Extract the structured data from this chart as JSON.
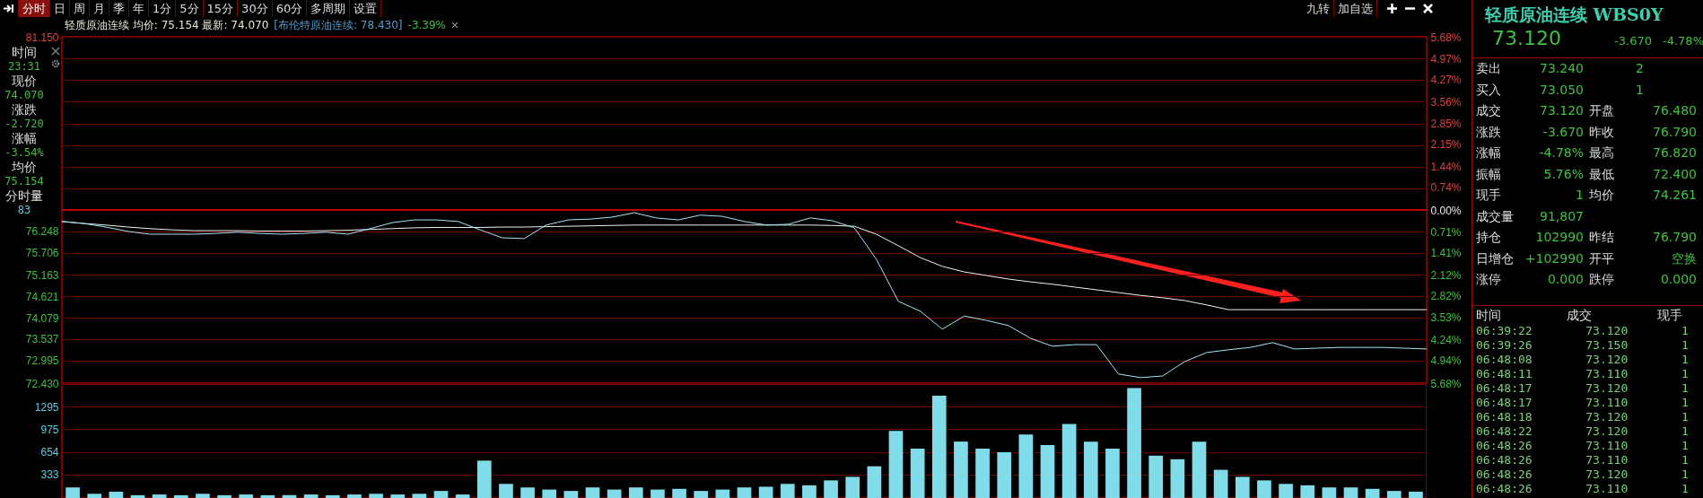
{
  "chart_data": [
    {
      "type": "other",
      "annotations": [
        "分时",
        "日",
        "周",
        "月",
        "季",
        "年",
        "1分",
        "5分",
        "15分",
        "30分",
        "60分",
        "多周期",
        "设置"
      ]
    },
    {
      "type": "other",
      "annotations": [
        "九转",
        "加自选"
      ]
    },
    {
      "type": "other",
      "annotations": [
        "时间",
        "23:31",
        "现价",
        "74.070",
        "涨跌",
        "-2.720",
        "涨幅",
        "-3.54%",
        "均价",
        "75.154",
        "分时量",
        "83"
      ]
    },
    {
      "type": "line",
      "annotations": [
        "轻质原油连续 均价: 75.154 最新: 74.070",
        "[布伦特原油连续: 78.430]",
        "-3.39%"
      ],
      "categories": [
        null,
        null,
        null,
        null,
        null,
        null,
        null,
        null,
        null,
        null,
        null,
        null,
        null,
        null,
        null,
        null,
        null,
        null,
        null,
        null,
        null,
        null,
        null,
        null,
        null,
        null,
        null,
        null,
        null,
        null,
        null,
        null,
        null,
        null,
        null,
        null,
        null,
        null,
        null,
        null,
        null,
        null,
        null,
        null,
        null,
        null,
        null,
        null,
        null,
        null,
        null,
        null,
        null,
        null,
        null,
        null,
        null,
        null,
        null,
        null,
        null,
        null,
        null
      ],
      "series": [
        {
          "color": "#f0f0f0",
          "values": [
            76.5,
            76.45,
            76.41,
            76.36,
            76.32,
            76.29,
            76.27,
            76.27,
            76.27,
            76.26,
            76.26,
            76.26,
            76.27,
            76.28,
            76.3,
            76.32,
            76.34,
            76.35,
            76.35,
            76.35,
            76.36,
            76.36,
            76.37,
            76.38,
            76.39,
            76.4,
            76.41,
            76.41,
            76.41,
            76.41,
            76.41,
            76.41,
            76.41,
            76.41,
            76.41,
            76.4,
            76.38,
            76.18,
            75.89,
            75.59,
            75.37,
            75.23,
            75.14,
            75.05,
            74.98,
            74.92,
            74.85,
            74.78,
            74.71,
            74.64,
            74.58,
            74.51,
            74.4,
            74.28,
            74.28,
            74.28,
            74.28,
            74.28,
            74.28,
            74.28,
            74.28,
            74.28,
            74.28
          ]
        },
        {
          "color": "#a8e4f8",
          "values": [
            76.5,
            76.45,
            76.36,
            76.25,
            76.18,
            76.18,
            76.18,
            76.2,
            76.23,
            76.2,
            76.18,
            76.2,
            76.23,
            76.18,
            76.32,
            76.47,
            76.54,
            76.54,
            76.5,
            76.29,
            76.09,
            76.07,
            76.41,
            76.54,
            76.56,
            76.61,
            76.72,
            76.59,
            76.54,
            76.66,
            76.63,
            76.5,
            76.41,
            76.43,
            76.59,
            76.52,
            76.34,
            75.55,
            74.49,
            74.24,
            73.79,
            74.12,
            74.01,
            73.88,
            73.56,
            73.36,
            73.4,
            73.4,
            72.66,
            72.57,
            72.61,
            72.97,
            73.2,
            73.27,
            73.33,
            73.45,
            73.29,
            73.31,
            73.33,
            73.33,
            73.33,
            73.31,
            73.29
          ]
        }
      ],
      "ylim": [
        72.43,
        81.15
      ],
      "yticks": [
        {
          "value": 81.15,
          "label": "81.150"
        },
        {
          "value": 80.605,
          "label": null
        },
        {
          "value": 80.06,
          "label": null
        },
        {
          "value": 79.515,
          "label": null
        },
        {
          "value": 78.97,
          "label": null
        },
        {
          "value": 78.425,
          "label": null
        },
        {
          "value": 77.88,
          "label": null
        },
        {
          "value": 77.335,
          "label": null
        },
        {
          "value": 76.79,
          "label": null
        },
        {
          "value": 76.248,
          "label": "76.248"
        },
        {
          "value": 75.706,
          "label": "75.706"
        },
        {
          "value": 75.163,
          "label": "75.163"
        },
        {
          "value": 74.621,
          "label": "74.621"
        },
        {
          "value": 74.079,
          "label": "74.079"
        },
        {
          "value": 73.537,
          "label": "73.537"
        },
        {
          "value": 72.995,
          "label": "72.995"
        },
        {
          "value": 72.43,
          "label": "72.430"
        }
      ],
      "y2lim": [
        -5.68,
        5.68
      ],
      "y2ticks": [
        {
          "value": 5.68,
          "label": "5.68%"
        },
        {
          "value": 4.97,
          "label": "4.97%"
        },
        {
          "value": 4.27,
          "label": "4.27%"
        },
        {
          "value": 3.56,
          "label": "3.56%"
        },
        {
          "value": 2.85,
          "label": "2.85%"
        },
        {
          "value": 2.15,
          "label": "2.15%"
        },
        {
          "value": 1.44,
          "label": "1.44%"
        },
        {
          "value": 0.74,
          "label": "0.74%"
        },
        {
          "value": 0,
          "label": "0.00%"
        },
        {
          "value": -0.71,
          "label": "0.71%"
        },
        {
          "value": -1.41,
          "label": "1.41%"
        },
        {
          "value": -2.12,
          "label": "2.12%"
        },
        {
          "value": -2.82,
          "label": "2.82%"
        },
        {
          "value": -3.53,
          "label": "3.53%"
        },
        {
          "value": -4.24,
          "label": "4.24%"
        },
        {
          "value": -4.94,
          "label": "4.94%"
        },
        {
          "value": -5.68,
          "label": "5.68%"
        }
      ],
      "ref_lines": [
        {
          "axis": "y",
          "value": 76.79,
          "color": "#c00000"
        }
      ],
      "grid": "y",
      "tick_labels": "y"
    },
    {
      "type": "bar",
      "categories": [
        null,
        null,
        null,
        null,
        null,
        null,
        null,
        null,
        null,
        null,
        null,
        null,
        null,
        null,
        null,
        null,
        null,
        null,
        null,
        null,
        null,
        null,
        null,
        null,
        null,
        null,
        null,
        null,
        null,
        null,
        null,
        null,
        null,
        null,
        null,
        null,
        null,
        null,
        null,
        null,
        null,
        null,
        null,
        null,
        null,
        null,
        null,
        null,
        null,
        null,
        null,
        null,
        null,
        null,
        null,
        null,
        null,
        null,
        null,
        null,
        null,
        null,
        null
      ],
      "values": [
        150,
        60,
        90,
        40,
        50,
        40,
        60,
        40,
        50,
        40,
        40,
        50,
        40,
        50,
        60,
        50,
        60,
        100,
        50,
        530,
        200,
        150,
        120,
        100,
        150,
        120,
        150,
        120,
        130,
        100,
        120,
        150,
        160,
        200,
        180,
        250,
        300,
        450,
        950,
        700,
        1450,
        800,
        700,
        650,
        900,
        750,
        1050,
        800,
        700,
        1560,
        600,
        550,
        800,
        400,
        300,
        250,
        200,
        180,
        150,
        150,
        130,
        100,
        90
      ],
      "color": "#80dce8",
      "ylim": [
        0,
        1616
      ],
      "yticks": [
        333,
        654,
        975,
        1295
      ],
      "grid": "y",
      "tick_labels": "y"
    },
    {
      "type": "other",
      "title": "轻质原油连续 WBS0Y",
      "subtitle": "73.120  -3.670  -4.78%",
      "annotations": [
        "卖出  73.240  2",
        "买入  73.050  1",
        "成交  73.120  开盘  76.480",
        "涨跌  -3.670  昨收  76.790",
        "涨幅  -4.78%  最高  76.820",
        "振幅  5.76%  最低  72.400",
        "现手  1  均价  74.261",
        "成交量  91,807",
        "持仓  102990  昨结  76.790",
        "日增仓  +102990  开平  空换",
        "涨停  0.000  跌停  0.000"
      ]
    },
    {
      "type": "other",
      "annotations": [
        "时间  成交  现手",
        "06:39:22  73.120  1",
        "06:39:26  73.150  1",
        "06:48:08  73.120  1",
        "06:48:11  73.110  1",
        "06:48:17  73.120  1",
        "06:48:17  73.110  1",
        "06:48:18  73.120  1",
        "06:48:22  73.120  1",
        "06:48:26  73.110  1",
        "06:48:26  73.110  1",
        "06:48:26  73.120  1",
        "06:48:26  73.110  1"
      ]
    }
  ]
}
